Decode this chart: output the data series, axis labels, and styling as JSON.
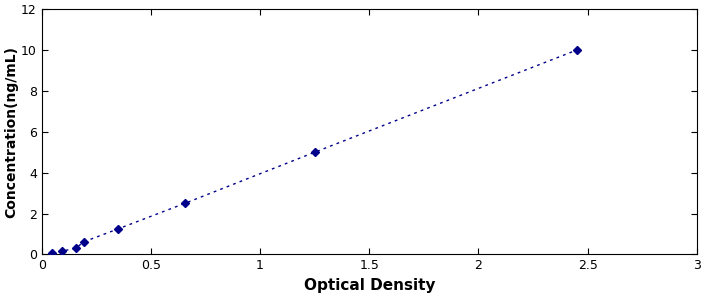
{
  "x_data": [
    0.047,
    0.094,
    0.156,
    0.195,
    0.35,
    0.656,
    1.25,
    2.45
  ],
  "y_data": [
    0.078,
    0.156,
    0.313,
    0.625,
    1.25,
    2.5,
    5.0,
    10.0
  ],
  "line_color": "#00008B",
  "marker_color": "#00008B",
  "marker_style": "D",
  "marker_size": 4,
  "line_style": "--",
  "line_width": 1.0,
  "xlabel": "Optical Density",
  "ylabel": "Concentration(ng/mL)",
  "xlim": [
    0,
    3
  ],
  "ylim": [
    0,
    12
  ],
  "xticks": [
    0,
    0.5,
    1,
    1.5,
    2,
    2.5,
    3
  ],
  "yticks": [
    0,
    2,
    4,
    6,
    8,
    10,
    12
  ],
  "xlabel_fontsize": 11,
  "ylabel_fontsize": 10,
  "tick_fontsize": 9,
  "background_color": "#ffffff",
  "spine_color": "#000000",
  "figure_width": 7.05,
  "figure_height": 2.97,
  "dpi": 100
}
